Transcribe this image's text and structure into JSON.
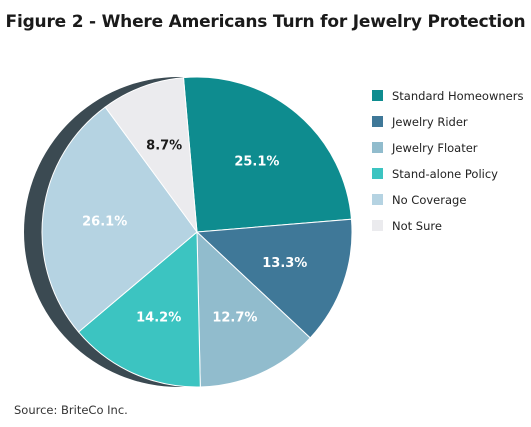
{
  "title": "Figure 2 - Where Americans Turn for Jewelry Protection",
  "source": "Source: BriteCo Inc.",
  "chart_data": {
    "type": "pie",
    "title": "Figure 2 - Where Americans Turn for Jewelry Protection",
    "series": [
      {
        "name": "Standard Homeowners",
        "value": 25.1,
        "label": "25.1%",
        "color": "#0e8c8f"
      },
      {
        "name": "Jewelry Rider",
        "value": 13.3,
        "label": "13.3%",
        "color": "#3f7898"
      },
      {
        "name": "Jewelry Floater",
        "value": 12.7,
        "label": "12.7%",
        "color": "#91bccd"
      },
      {
        "name": "Stand-alone Policy",
        "value": 14.2,
        "label": "14.2%",
        "color": "#3cc4c1"
      },
      {
        "name": "No Coverage",
        "value": 26.1,
        "label": "26.1%",
        "color": "#b5d3e2"
      },
      {
        "name": "Not Sure",
        "value": 8.7,
        "label": "8.7%",
        "color": "#ebebee"
      }
    ],
    "legend_position": "right",
    "shadow_color": "#3b4a52"
  }
}
